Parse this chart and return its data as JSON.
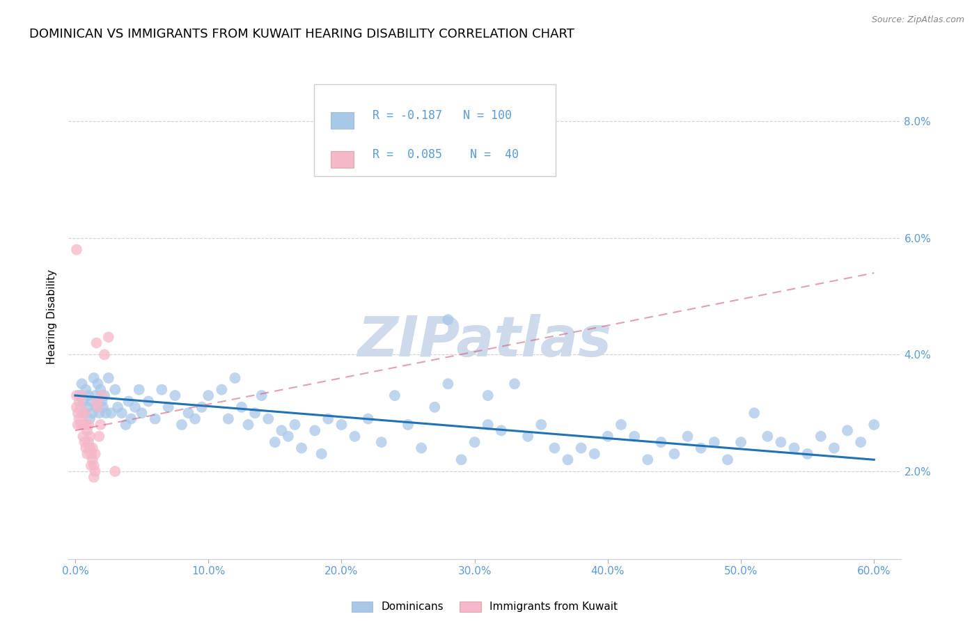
{
  "title": "DOMINICAN VS IMMIGRANTS FROM KUWAIT HEARING DISABILITY CORRELATION CHART",
  "source": "Source: ZipAtlas.com",
  "ylabel": "Hearing Disability",
  "xlim": [
    -0.005,
    0.62
  ],
  "ylim": [
    0.005,
    0.088
  ],
  "yticks": [
    0.02,
    0.04,
    0.06,
    0.08
  ],
  "ytick_labels": [
    "2.0%",
    "4.0%",
    "6.0%",
    "8.0%"
  ],
  "xticks": [
    0.0,
    0.1,
    0.2,
    0.3,
    0.4,
    0.5,
    0.6
  ],
  "xtick_labels": [
    "0.0%",
    "10.0%",
    "20.0%",
    "30.0%",
    "40.0%",
    "50.0%",
    "60.0%"
  ],
  "legend_blue_r": "-0.187",
  "legend_blue_n": "100",
  "legend_pink_r": "0.085",
  "legend_pink_n": "40",
  "blue_color": "#a8c8e8",
  "pink_color": "#f4b8c8",
  "blue_line_color": "#2171b5",
  "pink_line_color": "#d06080",
  "watermark": "ZIPatlas",
  "watermark_color": "#ccdaeb",
  "blue_scatter_x": [
    0.003,
    0.005,
    0.006,
    0.007,
    0.008,
    0.009,
    0.01,
    0.011,
    0.012,
    0.013,
    0.014,
    0.015,
    0.016,
    0.017,
    0.018,
    0.019,
    0.02,
    0.021,
    0.022,
    0.023,
    0.025,
    0.027,
    0.03,
    0.032,
    0.035,
    0.038,
    0.04,
    0.042,
    0.045,
    0.048,
    0.05,
    0.055,
    0.06,
    0.065,
    0.07,
    0.075,
    0.08,
    0.085,
    0.09,
    0.095,
    0.1,
    0.11,
    0.115,
    0.12,
    0.125,
    0.13,
    0.135,
    0.14,
    0.145,
    0.15,
    0.155,
    0.16,
    0.165,
    0.17,
    0.18,
    0.185,
    0.19,
    0.2,
    0.21,
    0.22,
    0.23,
    0.24,
    0.25,
    0.26,
    0.27,
    0.28,
    0.29,
    0.3,
    0.31,
    0.32,
    0.33,
    0.34,
    0.35,
    0.36,
    0.37,
    0.38,
    0.39,
    0.4,
    0.41,
    0.42,
    0.43,
    0.44,
    0.45,
    0.46,
    0.47,
    0.48,
    0.49,
    0.5,
    0.51,
    0.52,
    0.53,
    0.54,
    0.55,
    0.56,
    0.57,
    0.58,
    0.59,
    0.6,
    0.28,
    0.31
  ],
  "blue_scatter_y": [
    0.033,
    0.035,
    0.032,
    0.03,
    0.034,
    0.031,
    0.033,
    0.029,
    0.032,
    0.03,
    0.036,
    0.033,
    0.031,
    0.035,
    0.03,
    0.034,
    0.032,
    0.031,
    0.033,
    0.03,
    0.036,
    0.03,
    0.034,
    0.031,
    0.03,
    0.028,
    0.032,
    0.029,
    0.031,
    0.034,
    0.03,
    0.032,
    0.029,
    0.034,
    0.031,
    0.033,
    0.028,
    0.03,
    0.029,
    0.031,
    0.033,
    0.034,
    0.029,
    0.036,
    0.031,
    0.028,
    0.03,
    0.033,
    0.029,
    0.025,
    0.027,
    0.026,
    0.028,
    0.024,
    0.027,
    0.023,
    0.029,
    0.028,
    0.026,
    0.029,
    0.025,
    0.033,
    0.028,
    0.024,
    0.031,
    0.035,
    0.022,
    0.025,
    0.028,
    0.027,
    0.035,
    0.026,
    0.028,
    0.024,
    0.022,
    0.024,
    0.023,
    0.026,
    0.028,
    0.026,
    0.022,
    0.025,
    0.023,
    0.026,
    0.024,
    0.025,
    0.022,
    0.025,
    0.03,
    0.026,
    0.025,
    0.024,
    0.023,
    0.026,
    0.024,
    0.027,
    0.025,
    0.028,
    0.046,
    0.033
  ],
  "pink_scatter_x": [
    0.001,
    0.001,
    0.002,
    0.002,
    0.003,
    0.003,
    0.004,
    0.004,
    0.005,
    0.005,
    0.006,
    0.006,
    0.007,
    0.007,
    0.008,
    0.008,
    0.009,
    0.009,
    0.01,
    0.01,
    0.011,
    0.011,
    0.012,
    0.012,
    0.013,
    0.013,
    0.014,
    0.014,
    0.015,
    0.015,
    0.016,
    0.016,
    0.017,
    0.018,
    0.019,
    0.02,
    0.022,
    0.025,
    0.03,
    0.001
  ],
  "pink_scatter_y": [
    0.031,
    0.033,
    0.03,
    0.028,
    0.032,
    0.029,
    0.031,
    0.028,
    0.033,
    0.03,
    0.028,
    0.026,
    0.03,
    0.025,
    0.028,
    0.024,
    0.027,
    0.023,
    0.028,
    0.025,
    0.026,
    0.024,
    0.023,
    0.021,
    0.024,
    0.022,
    0.021,
    0.019,
    0.023,
    0.02,
    0.032,
    0.042,
    0.031,
    0.026,
    0.028,
    0.033,
    0.04,
    0.043,
    0.02,
    0.058
  ],
  "blue_trend_x": [
    0.0,
    0.6
  ],
  "blue_trend_y": [
    0.033,
    0.022
  ],
  "pink_trend_x": [
    0.0,
    0.6
  ],
  "pink_trend_y": [
    0.027,
    0.054
  ],
  "bg_color": "#ffffff",
  "grid_color": "#d0d0d0",
  "axis_label_color": "#5b9bd5",
  "title_fontsize": 13,
  "label_fontsize": 11,
  "tick_fontsize": 11
}
